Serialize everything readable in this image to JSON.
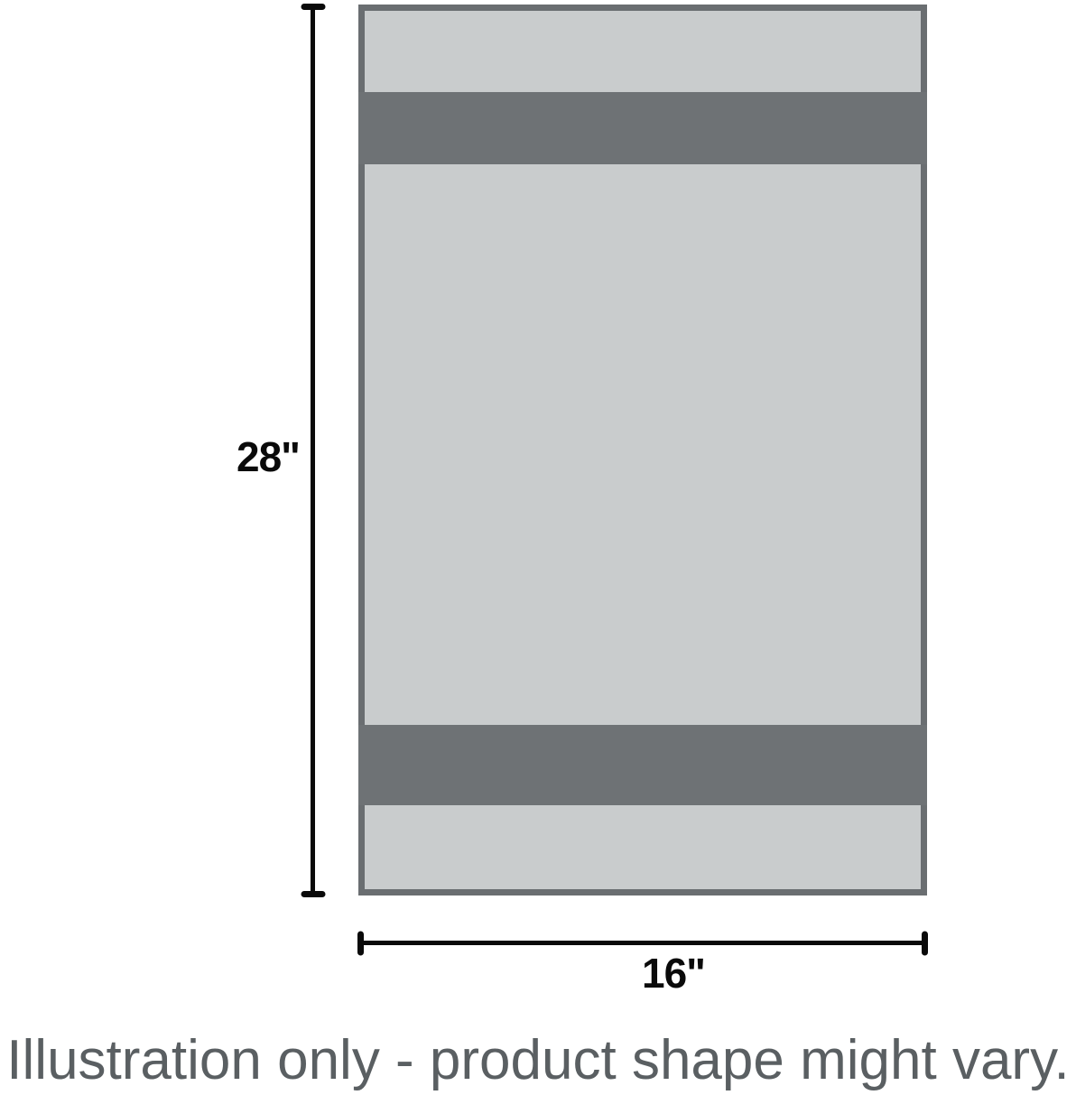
{
  "dimensions": {
    "height_label": "28\"",
    "width_label": "16\""
  },
  "caption": {
    "text": "Illustration only - product shape might vary."
  },
  "colors": {
    "product-fill": "#c9cccd",
    "product-stripe": "#6e7275",
    "product-border": "#6a6e71",
    "dimension-line": "#0a0a0a",
    "caption-text": "#5a5f62"
  }
}
